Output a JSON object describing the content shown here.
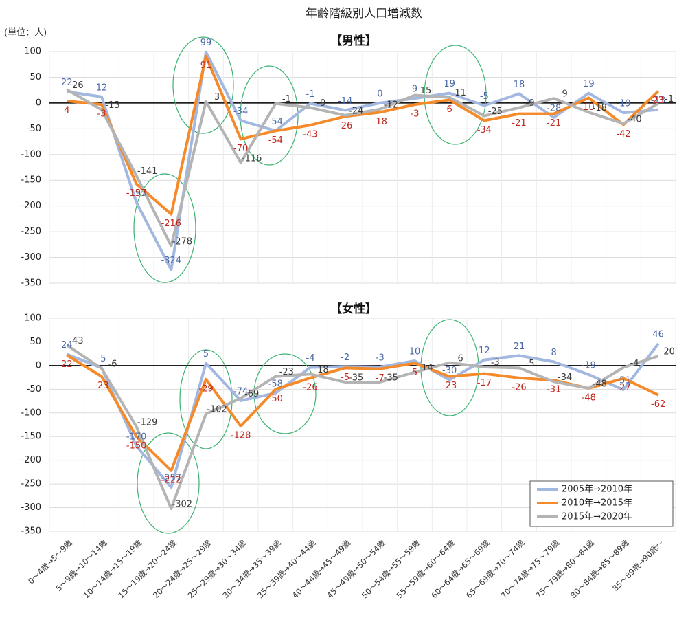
{
  "chart_data": {
    "type": "line",
    "title": "年齢階級別人口増減数",
    "unit_label": "(単位：人)",
    "categories": [
      "0～4歳→5～9歳",
      "5～9歳→10～14歳",
      "10～14歳→15～19歳",
      "15～19歳→20～24歳",
      "20～24歳→25～29歳",
      "25～29歳→30～34歳",
      "30～34歳→35～39歳",
      "35～39歳→40～44歳",
      "40～44歳→45～49歳",
      "45～49歳→50～54歳",
      "50～54歳→55～59歳",
      "55～59歳→60～64歳",
      "60～64歳→65～69歳",
      "65～69歳→70～74歳",
      "70～74歳→75～79歳",
      "75～79歳→80～84歳",
      "80～84歳→85～89歳",
      "85～89歳→90歳～"
    ],
    "series": [
      {
        "name": "2005年→2010年",
        "color": "#a3b8e0",
        "label_color": "#4a68a8"
      },
      {
        "name": "2010年→2015年",
        "color": "#f58a2a",
        "label_color": "#c0281e"
      },
      {
        "name": "2015年→2020年",
        "color": "#b4b4b4",
        "label_color": "#3a3a3a"
      }
    ],
    "ylim": [
      -350,
      100
    ],
    "yticks": [
      -350,
      -300,
      -250,
      -200,
      -150,
      -100,
      -50,
      0,
      50,
      100
    ],
    "grid": true,
    "legend": "lower right",
    "panels": [
      {
        "title": "【男性】",
        "values": [
          [
            22,
            12,
            -193,
            -324,
            99,
            -34,
            -54,
            -1,
            -14,
            0,
            9,
            19,
            -5,
            18,
            -28,
            19,
            -19,
            -13
          ],
          [
            4,
            -3,
            -157,
            -216,
            91,
            -70,
            -54,
            -43,
            -26,
            -18,
            -3,
            6,
            -34,
            -21,
            -21,
            10,
            -42,
            23
          ],
          [
            26,
            -13,
            -141,
            -278,
            3,
            -116,
            -1,
            -9,
            -24,
            -12,
            15,
            11,
            -25,
            -9,
            9,
            -18,
            -40,
            -1
          ]
        ]
      },
      {
        "title": "【女性】",
        "values": [
          [
            24,
            -5,
            -170,
            -257,
            5,
            -74,
            -58,
            -4,
            -2,
            -3,
            10,
            -30,
            12,
            21,
            8,
            -19,
            -51,
            46
          ],
          [
            22,
            -23,
            -150,
            -222,
            -29,
            -128,
            -50,
            -26,
            -5,
            -7,
            5,
            -23,
            -17,
            -26,
            -31,
            -48,
            -27,
            -62
          ],
          [
            43,
            -6,
            -129,
            -302,
            -102,
            -69,
            -23,
            -18,
            -35,
            -35,
            -14,
            6,
            -3,
            -5,
            -34,
            -48,
            -4,
            20
          ]
        ]
      }
    ]
  }
}
